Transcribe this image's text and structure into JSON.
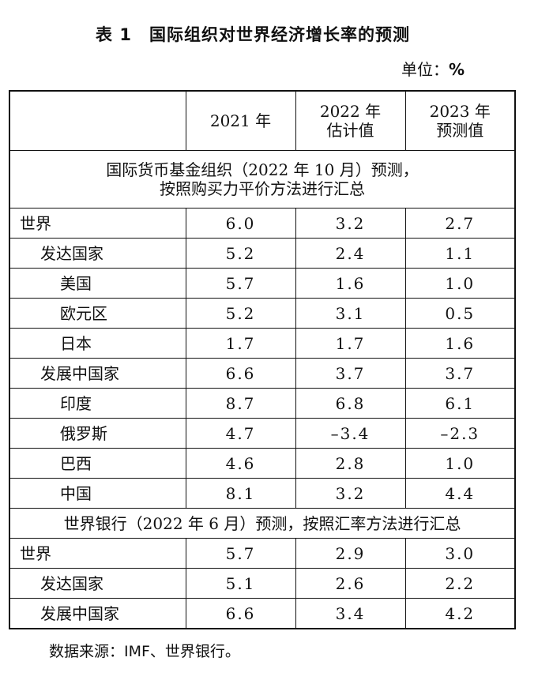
{
  "title": {
    "number": "表 1",
    "text": "国际组织对世界经济增长率的预测"
  },
  "unit": {
    "label": "单位：",
    "symbol": "%"
  },
  "header": {
    "col1": "2021 年",
    "col2_line1": "2022 年",
    "col2_line2": "估计值",
    "col3_line1": "2023 年",
    "col3_line2": "预测值"
  },
  "section1": {
    "line1": "国际货币基金组织（2022 年 10 月）预测，",
    "line2": "按照购买力平价方法进行汇总",
    "rows": [
      {
        "label": "世界",
        "v2021": "6.0",
        "v2022": "3.2",
        "v2023": "2.7"
      },
      {
        "label": "发达国家",
        "v2021": "5.2",
        "v2022": "2.4",
        "v2023": "1.1"
      },
      {
        "label": "美国",
        "v2021": "5.7",
        "v2022": "1.6",
        "v2023": "1.0"
      },
      {
        "label": "欧元区",
        "v2021": "5.2",
        "v2022": "3.1",
        "v2023": "0.5"
      },
      {
        "label": "日本",
        "v2021": "1.7",
        "v2022": "1.7",
        "v2023": "1.6"
      },
      {
        "label": "发展中国家",
        "v2021": "6.6",
        "v2022": "3.7",
        "v2023": "3.7"
      },
      {
        "label": "印度",
        "v2021": "8.7",
        "v2022": "6.8",
        "v2023": "6.1"
      },
      {
        "label": "俄罗斯",
        "v2021": "4.7",
        "v2022": "–3.4",
        "v2023": "–2.3"
      },
      {
        "label": "巴西",
        "v2021": "4.6",
        "v2022": "2.8",
        "v2023": "1.0"
      },
      {
        "label": "中国",
        "v2021": "8.1",
        "v2022": "3.2",
        "v2023": "4.4"
      }
    ]
  },
  "section2": {
    "line1": "世界银行（2022 年 6 月）预测，按照汇率方法进行汇总",
    "rows": [
      {
        "label": "世界",
        "v2021": "5.7",
        "v2022": "2.9",
        "v2023": "3.0"
      },
      {
        "label": "发达国家",
        "v2021": "5.1",
        "v2022": "2.6",
        "v2023": "2.2"
      },
      {
        "label": "发展中国家",
        "v2021": "6.6",
        "v2022": "3.4",
        "v2023": "4.2"
      }
    ]
  },
  "source": "数据来源：IMF、世界银行。"
}
